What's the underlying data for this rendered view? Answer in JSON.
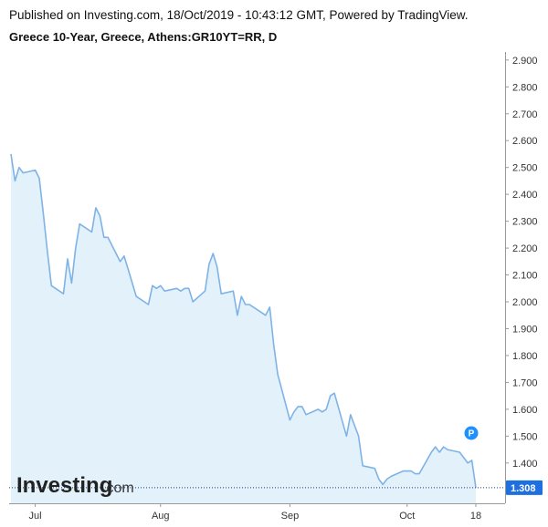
{
  "header": {
    "published": "Published on Investing.com, 18/Oct/2019 - 10:43:12 GMT, Powered by TradingView.",
    "title": "Greece 10-Year, Greece, Athens:GR10YT=RR, D"
  },
  "logo": {
    "text": "Investing",
    "suffix": ".com"
  },
  "marker": {
    "label": "P",
    "color": "#1e90ff"
  },
  "last_value": {
    "label": "1.308",
    "value": 1.308,
    "color": "#1e6fe0"
  },
  "colors": {
    "line": "#7fb3e6",
    "fill": "#e3f1fb",
    "axis": "#999999",
    "last_line": "#1e3a8a"
  },
  "chart_data": {
    "type": "area",
    "title": "Greece 10-Year, Greece, Athens:GR10YT=RR, D",
    "xlabel": "",
    "ylabel": "",
    "ylim": [
      1.25,
      2.93
    ],
    "grid": false,
    "y_ticks": [
      "2.900",
      "2.800",
      "2.700",
      "2.600",
      "2.500",
      "2.400",
      "2.300",
      "2.200",
      "2.100",
      "2.000",
      "1.900",
      "1.800",
      "1.700",
      "1.600",
      "1.500",
      "1.400"
    ],
    "x_ticks": [
      {
        "label": "Jul",
        "date": "2019-07-01"
      },
      {
        "label": "Aug",
        "date": "2019-08-01"
      },
      {
        "label": "Sep",
        "date": "2019-09-02"
      },
      {
        "label": "Oct",
        "date": "2019-10-01"
      },
      {
        "label": "18",
        "date": "2019-10-18"
      }
    ],
    "x_range": [
      "2019-06-25",
      "2019-10-18"
    ],
    "series": [
      {
        "values": [
          [
            "2019-06-25",
            2.55
          ],
          [
            "2019-06-26",
            2.45
          ],
          [
            "2019-06-27",
            2.5
          ],
          [
            "2019-06-28",
            2.48
          ],
          [
            "2019-07-01",
            2.49
          ],
          [
            "2019-07-02",
            2.46
          ],
          [
            "2019-07-03",
            2.33
          ],
          [
            "2019-07-04",
            2.19
          ],
          [
            "2019-07-05",
            2.06
          ],
          [
            "2019-07-08",
            2.03
          ],
          [
            "2019-07-09",
            2.16
          ],
          [
            "2019-07-10",
            2.07
          ],
          [
            "2019-07-11",
            2.2
          ],
          [
            "2019-07-12",
            2.29
          ],
          [
            "2019-07-15",
            2.26
          ],
          [
            "2019-07-16",
            2.35
          ],
          [
            "2019-07-17",
            2.32
          ],
          [
            "2019-07-18",
            2.24
          ],
          [
            "2019-07-19",
            2.24
          ],
          [
            "2019-07-22",
            2.15
          ],
          [
            "2019-07-23",
            2.17
          ],
          [
            "2019-07-24",
            2.12
          ],
          [
            "2019-07-25",
            2.07
          ],
          [
            "2019-07-26",
            2.02
          ],
          [
            "2019-07-29",
            1.99
          ],
          [
            "2019-07-30",
            2.06
          ],
          [
            "2019-07-31",
            2.05
          ],
          [
            "2019-08-01",
            2.06
          ],
          [
            "2019-08-02",
            2.04
          ],
          [
            "2019-08-05",
            2.05
          ],
          [
            "2019-08-06",
            2.04
          ],
          [
            "2019-08-07",
            2.05
          ],
          [
            "2019-08-08",
            2.05
          ],
          [
            "2019-08-09",
            2.0
          ],
          [
            "2019-08-12",
            2.04
          ],
          [
            "2019-08-13",
            2.14
          ],
          [
            "2019-08-14",
            2.18
          ],
          [
            "2019-08-15",
            2.13
          ],
          [
            "2019-08-16",
            2.03
          ],
          [
            "2019-08-19",
            2.04
          ],
          [
            "2019-08-20",
            1.95
          ],
          [
            "2019-08-21",
            2.02
          ],
          [
            "2019-08-22",
            1.99
          ],
          [
            "2019-08-23",
            1.99
          ],
          [
            "2019-08-26",
            1.96
          ],
          [
            "2019-08-27",
            1.95
          ],
          [
            "2019-08-28",
            1.98
          ],
          [
            "2019-08-29",
            1.84
          ],
          [
            "2019-08-30",
            1.73
          ],
          [
            "2019-09-02",
            1.56
          ],
          [
            "2019-09-03",
            1.59
          ],
          [
            "2019-09-04",
            1.61
          ],
          [
            "2019-09-05",
            1.61
          ],
          [
            "2019-09-06",
            1.58
          ],
          [
            "2019-09-09",
            1.6
          ],
          [
            "2019-09-10",
            1.59
          ],
          [
            "2019-09-11",
            1.6
          ],
          [
            "2019-09-12",
            1.65
          ],
          [
            "2019-09-13",
            1.66
          ],
          [
            "2019-09-16",
            1.5
          ],
          [
            "2019-09-17",
            1.58
          ],
          [
            "2019-09-18",
            1.54
          ],
          [
            "2019-09-19",
            1.5
          ],
          [
            "2019-09-20",
            1.39
          ],
          [
            "2019-09-23",
            1.38
          ],
          [
            "2019-09-24",
            1.34
          ],
          [
            "2019-09-25",
            1.32
          ],
          [
            "2019-09-26",
            1.34
          ],
          [
            "2019-09-27",
            1.35
          ],
          [
            "2019-09-30",
            1.37
          ],
          [
            "2019-10-01",
            1.37
          ],
          [
            "2019-10-02",
            1.37
          ],
          [
            "2019-10-03",
            1.36
          ],
          [
            "2019-10-04",
            1.36
          ],
          [
            "2019-10-07",
            1.44
          ],
          [
            "2019-10-08",
            1.46
          ],
          [
            "2019-10-09",
            1.44
          ],
          [
            "2019-10-10",
            1.46
          ],
          [
            "2019-10-11",
            1.45
          ],
          [
            "2019-10-14",
            1.44
          ],
          [
            "2019-10-15",
            1.42
          ],
          [
            "2019-10-16",
            1.4
          ],
          [
            "2019-10-17",
            1.41
          ],
          [
            "2019-10-18",
            1.308
          ]
        ]
      }
    ]
  }
}
